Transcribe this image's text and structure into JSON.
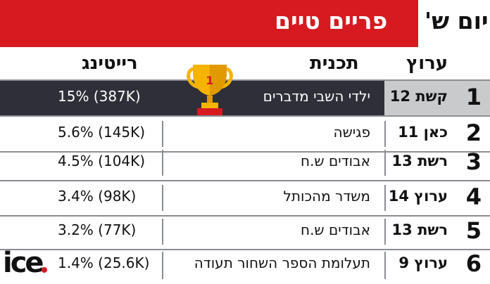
{
  "header": {
    "title": "פריים טיים",
    "day": "יום ש'"
  },
  "columns": {
    "channel": "ערוץ",
    "program": "תכנית",
    "rating": "רייטינג"
  },
  "rows": [
    {
      "rank": "1",
      "channel": "קשת 12",
      "program": "ילדי השבי מדברים",
      "rating": "15% (387K)"
    },
    {
      "rank": "2",
      "channel": "כאן 11",
      "program": "פגישה",
      "rating": "5.6% (145K)"
    },
    {
      "rank": "3",
      "channel": "רשת 13",
      "program": "אבודים ש.ח",
      "rating": "4.5% (104K)"
    },
    {
      "rank": "4",
      "channel": "ערוץ 14",
      "program": "משדר מהכותל",
      "rating": "3.4% (98K)"
    },
    {
      "rank": "5",
      "channel": "רשת 13",
      "program": "אבודים ש.ח",
      "rating": "3.2% (77K)"
    },
    {
      "rank": "6",
      "channel": "ערוץ 9",
      "program": "תעלומת הספר השחור תעודה",
      "rating": "1.4% (25.6K)"
    }
  ],
  "trophy_label": "1",
  "logo": "ice.",
  "colors": {
    "brand_red": "#d71920",
    "highlight_dark": "#2e2f38",
    "highlight_gray": "#c9cacc",
    "trophy_gold": "#f4b400"
  },
  "icons": {
    "trophy": "trophy-icon",
    "logo": "ice-logo"
  }
}
